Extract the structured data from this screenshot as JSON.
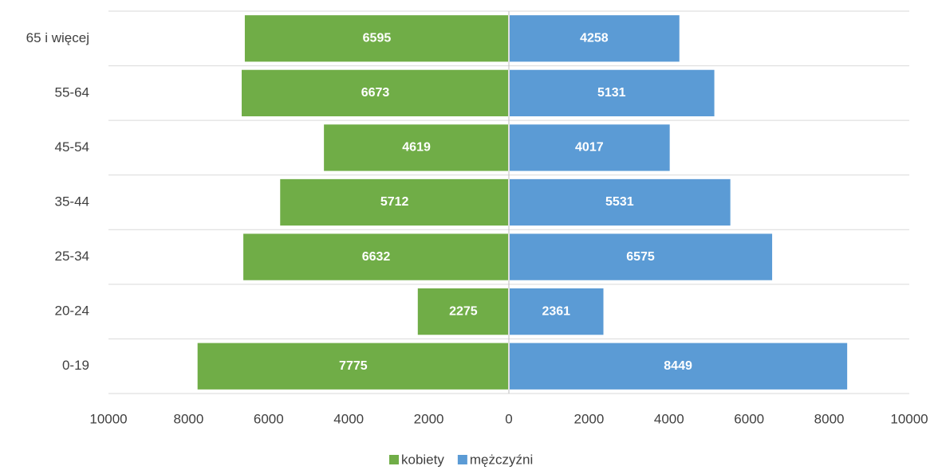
{
  "chart_data": {
    "type": "bar",
    "orientation": "horizontal",
    "categories": [
      "65 i więcej",
      "55-64",
      "45-54",
      "35-44",
      "25-34",
      "20-24",
      "0-19"
    ],
    "series": [
      {
        "name": "kobiety",
        "color": "#70ad47",
        "values": [
          -6595,
          -6673,
          -4619,
          -5712,
          -6632,
          -2275,
          -7775
        ],
        "value_labels": [
          "6595",
          "6673",
          "4619",
          "5712",
          "6632",
          "2275",
          "7775"
        ]
      },
      {
        "name": "mężczyźni",
        "color": "#5b9bd5",
        "values": [
          4258,
          5131,
          4017,
          5531,
          6575,
          2361,
          8449
        ]
      }
    ],
    "xlim": [
      -10000,
      10000
    ],
    "xticks": [
      {
        "value": -10000,
        "label": "10000"
      },
      {
        "value": -8000,
        "label": "8000"
      },
      {
        "value": -6000,
        "label": "6000"
      },
      {
        "value": -4000,
        "label": "4000"
      },
      {
        "value": -2000,
        "label": "2000"
      },
      0,
      2000,
      4000,
      6000,
      8000,
      10000
    ],
    "legend": "bottom"
  }
}
